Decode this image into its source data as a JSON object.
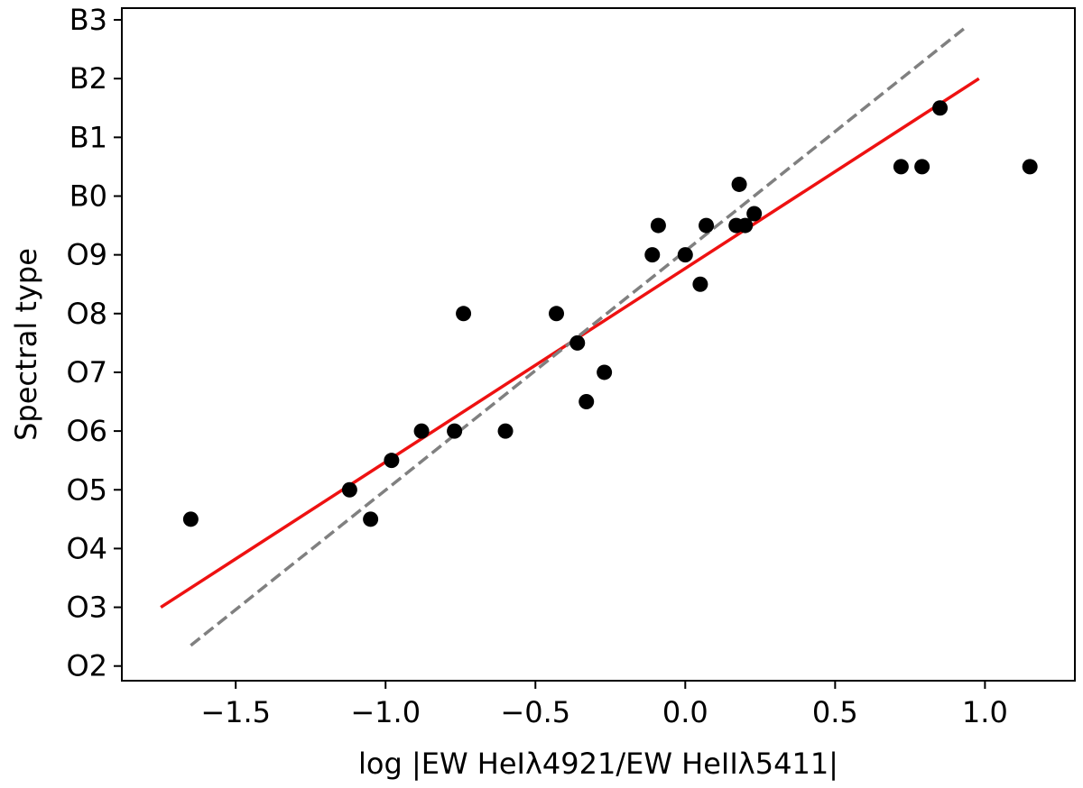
{
  "chart_data": {
    "type": "scatter",
    "title": "",
    "xlabel": "log |EW HeIλ4921/EW HeIIλ5411|",
    "ylabel": "Spectral type",
    "xlim": [
      -1.88,
      1.3
    ],
    "ylim": [
      1.75,
      13.2
    ],
    "x_ticks": [
      {
        "value": -1.5,
        "label": "−1.5"
      },
      {
        "value": -1.0,
        "label": "−1.0"
      },
      {
        "value": -0.5,
        "label": "−0.5"
      },
      {
        "value": 0.0,
        "label": "0.0"
      },
      {
        "value": 0.5,
        "label": "0.5"
      },
      {
        "value": 1.0,
        "label": "1.0"
      }
    ],
    "y_ticks": [
      {
        "value": 2,
        "label": "O2"
      },
      {
        "value": 3,
        "label": "O3"
      },
      {
        "value": 4,
        "label": "O4"
      },
      {
        "value": 5,
        "label": "O5"
      },
      {
        "value": 6,
        "label": "O6"
      },
      {
        "value": 7,
        "label": "O7"
      },
      {
        "value": 8,
        "label": "O8"
      },
      {
        "value": 9,
        "label": "O9"
      },
      {
        "value": 10,
        "label": "B0"
      },
      {
        "value": 11,
        "label": "B1"
      },
      {
        "value": 12,
        "label": "B2"
      },
      {
        "value": 13,
        "label": "B3"
      }
    ],
    "grid": false,
    "series": [
      {
        "kind": "scatter",
        "color": "#000000",
        "points": [
          {
            "x": -1.65,
            "y": 4.5
          },
          {
            "x": -1.12,
            "y": 5.0
          },
          {
            "x": -1.05,
            "y": 4.5
          },
          {
            "x": -0.98,
            "y": 5.5
          },
          {
            "x": -0.88,
            "y": 6.0
          },
          {
            "x": -0.77,
            "y": 6.0
          },
          {
            "x": -0.74,
            "y": 8.0
          },
          {
            "x": -0.6,
            "y": 6.0
          },
          {
            "x": -0.43,
            "y": 8.0
          },
          {
            "x": -0.36,
            "y": 7.5
          },
          {
            "x": -0.33,
            "y": 6.5
          },
          {
            "x": -0.27,
            "y": 7.0
          },
          {
            "x": -0.11,
            "y": 9.0
          },
          {
            "x": -0.09,
            "y": 9.5
          },
          {
            "x": 0.0,
            "y": 9.0
          },
          {
            "x": 0.05,
            "y": 8.5
          },
          {
            "x": 0.07,
            "y": 9.5
          },
          {
            "x": 0.17,
            "y": 9.5
          },
          {
            "x": 0.18,
            "y": 10.2
          },
          {
            "x": 0.2,
            "y": 9.5
          },
          {
            "x": 0.23,
            "y": 9.7
          },
          {
            "x": 0.72,
            "y": 10.5
          },
          {
            "x": 0.79,
            "y": 10.5
          },
          {
            "x": 0.85,
            "y": 11.5
          },
          {
            "x": 1.15,
            "y": 10.5
          }
        ]
      },
      {
        "kind": "line",
        "color": "#ee1111",
        "style": "solid",
        "points": [
          {
            "x": -1.75,
            "y": 3.0
          },
          {
            "x": 0.98,
            "y": 12.0
          }
        ]
      },
      {
        "kind": "line",
        "color": "#808080",
        "style": "dashed",
        "points": [
          {
            "x": -1.65,
            "y": 2.35
          },
          {
            "x": 0.93,
            "y": 12.85
          }
        ]
      }
    ]
  }
}
